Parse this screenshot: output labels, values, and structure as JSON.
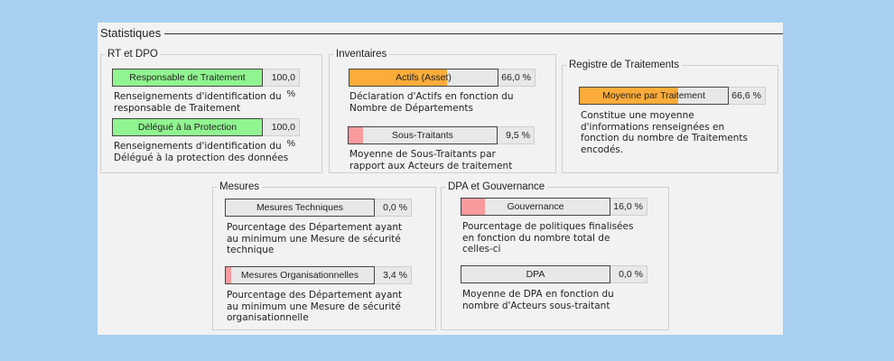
{
  "panel": {
    "title": "Statistiques"
  },
  "colors": {
    "background": "#a6cff0",
    "panel": "#f2f2f2",
    "green": "#90f590",
    "orange": "#fbac3a",
    "red": "#f99a9e",
    "bar_empty": "#e8e8e8"
  },
  "groups": {
    "rt_dpo": {
      "legend": "RT et DPO",
      "items": [
        {
          "label": "Responsable de Traitement",
          "value": "100,0 %",
          "percent": 100.0,
          "color": "#90f590",
          "description": "Renseignements d'identification du\nresponsable de Traitement"
        },
        {
          "label": "Délégué à la Protection",
          "value": "100,0 %",
          "percent": 100.0,
          "color": "#90f590",
          "description": "Renseignements d'identification du\nDélégué à la protection des données"
        }
      ]
    },
    "inventaires": {
      "legend": "Inventaires",
      "items": [
        {
          "label": "Actifs (Asset)",
          "value": "66,0 %",
          "percent": 66.0,
          "color": "#fbac3a",
          "description": "Déclaration d'Actifs en fonction du\nNombre de Départements"
        },
        {
          "label": "Sous-Traitants",
          "value": "9,5 %",
          "percent": 9.5,
          "color": "#f99a9e",
          "description": "Moyenne de Sous-Traitants par\nrapport aux Acteurs de traitement"
        }
      ]
    },
    "registre": {
      "legend": "Registre de Traitements",
      "items": [
        {
          "label": "Moyenne par Traitement",
          "value": "66,6 %",
          "percent": 66.6,
          "color": "#fbac3a",
          "description": "Constitue une moyenne\nd'informations renseignées en\nfonction du nombre de Traitements\nencodés."
        }
      ]
    },
    "mesures": {
      "legend": "Mesures",
      "items": [
        {
          "label": "Mesures Techniques",
          "value": "0,0 %",
          "percent": 0.0,
          "color": "#f99a9e",
          "description": "Pourcentage des Département ayant\nau minimum une Mesure de sécurité\ntechnique"
        },
        {
          "label": "Mesures Organisationnelles",
          "value": "3,4 %",
          "percent": 3.4,
          "color": "#f99a9e",
          "description": "Pourcentage des Département ayant\nau minimum une Mesure de sécurité\norganisationnelle"
        }
      ]
    },
    "dpa_gouvernance": {
      "legend": "DPA et Gouvernance",
      "items": [
        {
          "label": "Gouvernance",
          "value": "16,0 %",
          "percent": 16.0,
          "color": "#f99a9e",
          "description": "Pourcentage de politiques finalisées\nen fonction du nombre total de\ncelles-ci"
        },
        {
          "label": "DPA",
          "value": "0,0 %",
          "percent": 0.0,
          "color": "#f99a9e",
          "description": "Moyenne de DPA en fonction du\nnombre d'Acteurs sous-traitant"
        }
      ]
    }
  }
}
